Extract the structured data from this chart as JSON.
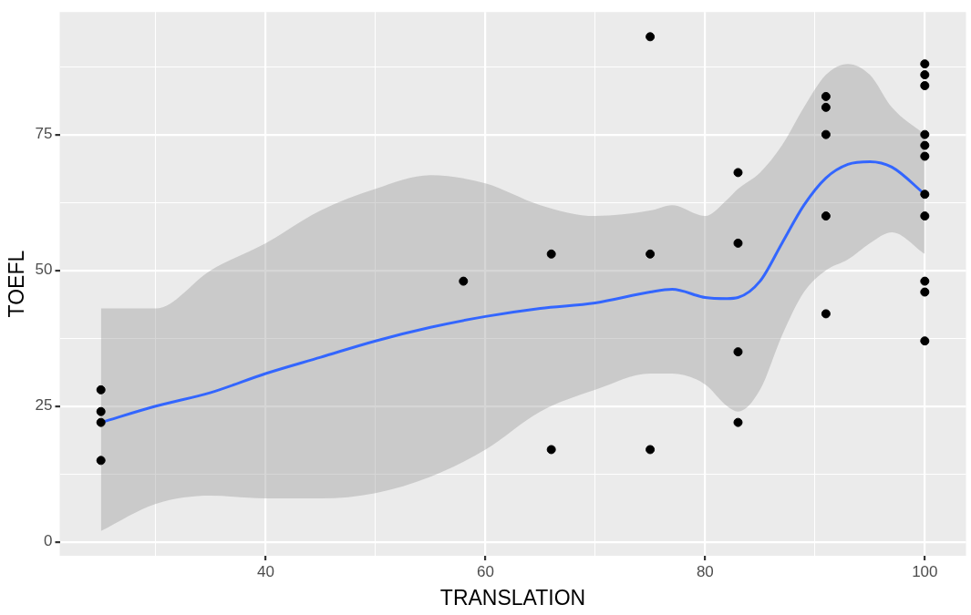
{
  "chart_data": {
    "type": "scatter",
    "xlabel": "TRANSLATION",
    "ylabel": "TOEFL",
    "xlim": [
      21.25,
      103.75
    ],
    "xticks": [
      {
        "value": 30,
        "label": null
      },
      40,
      {
        "value": 50,
        "label": null
      },
      60,
      {
        "value": 70,
        "label": null
      },
      80,
      {
        "value": 90,
        "label": null
      },
      100
    ],
    "ylim": [
      -2.55,
      97.55
    ],
    "yticks": [
      0,
      {
        "value": 12.5,
        "label": null
      },
      25,
      {
        "value": 37.5,
        "label": null
      },
      50,
      {
        "value": 62.5,
        "label": null
      },
      75,
      {
        "value": 87.5,
        "label": null
      }
    ],
    "grid": true,
    "legend": false,
    "series": [
      {
        "type": "scatter",
        "color": "#000000",
        "marker": "circle",
        "x": [
          25,
          25,
          25,
          25,
          58,
          66,
          66,
          75,
          75,
          75,
          83,
          83,
          83,
          83,
          91,
          91,
          91,
          91,
          91,
          100,
          100,
          100,
          100,
          100,
          100,
          100,
          100,
          100,
          100,
          100
        ],
        "values": [
          28,
          24,
          22,
          15,
          48,
          53,
          17,
          93,
          53,
          17,
          68,
          55,
          35,
          22,
          82,
          80,
          75,
          60,
          42,
          88,
          86,
          84,
          75,
          73,
          71,
          64,
          60,
          48,
          46,
          37
        ]
      },
      {
        "type": "line",
        "color": "#3366ff",
        "marker": "none",
        "line_style": "solid",
        "x": [
          25,
          30,
          35,
          40,
          45,
          50,
          55,
          60,
          65,
          70,
          75,
          77,
          80,
          82,
          83,
          85,
          87,
          89,
          91,
          93,
          95,
          97,
          100
        ],
        "values": [
          22,
          25,
          27.5,
          31,
          34,
          37,
          39.5,
          41.5,
          43,
          44,
          46,
          46.5,
          45,
          44.8,
          45,
          48,
          55,
          62,
          67,
          69.5,
          70,
          69,
          64
        ],
        "lower": [
          2,
          7,
          8.5,
          8,
          8,
          9,
          12,
          17,
          24,
          28,
          31,
          31,
          29,
          25,
          24,
          28,
          38,
          46,
          50,
          52,
          55,
          57,
          53
        ],
        "upper": [
          43,
          43,
          50,
          55,
          61,
          65,
          67.5,
          66,
          62,
          60,
          61,
          62,
          60,
          63,
          65,
          68,
          73,
          80,
          86,
          88,
          86,
          80,
          75
        ]
      }
    ]
  }
}
